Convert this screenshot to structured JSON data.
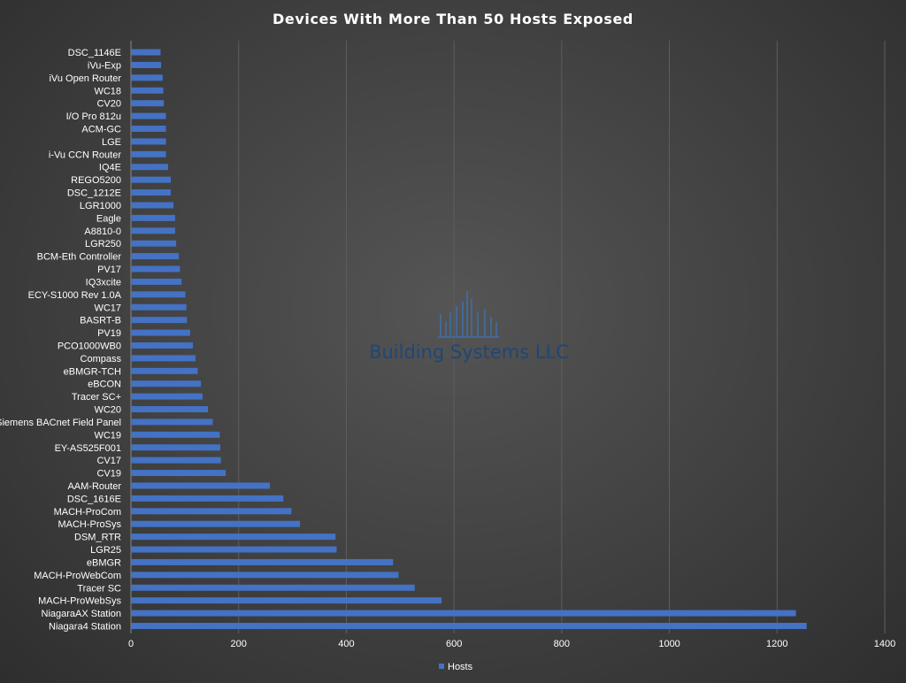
{
  "chart_data": {
    "type": "bar",
    "orientation": "horizontal",
    "title": "Devices With More Than 50 Hosts Exposed",
    "categories": [
      "Niagara4 Station",
      "NiagaraAX Station",
      "MACH-ProWebSys",
      "Tracer SC",
      "MACH-ProWebCom",
      "eBMGR",
      "LGR25",
      "DSM_RTR",
      "MACH-ProSys",
      "MACH-ProCom",
      "DSC_1616E",
      "AAM-Router",
      "CV19",
      "CV17",
      "EY-AS525F001",
      "WC19",
      "Siemens BACnet Field Panel",
      "WC20",
      "Tracer SC+",
      "eBCON",
      "eBMGR-TCH",
      "Compass",
      "PCO1000WB0",
      "PV19",
      "BASRT-B",
      "WC17",
      "ECY-S1000 Rev 1.0A",
      "IQ3xcite",
      "PV17",
      "BCM-Eth Controller",
      "LGR250",
      "A8810-0",
      "Eagle",
      "LGR1000",
      "DSC_1212E",
      "REGO5200",
      "IQ4E",
      "i-Vu CCN Router",
      "LGE",
      "ACM-GC",
      "I/O Pro 812u",
      "CV20",
      "WC18",
      "iVu Open Router",
      "iVu-Exp",
      "DSC_1146E"
    ],
    "series": [
      {
        "name": "Hosts",
        "color": "#4472c4",
        "values": [
          1255,
          1235,
          577,
          527,
          497,
          487,
          382,
          380,
          314,
          298,
          283,
          258,
          176,
          167,
          166,
          165,
          152,
          143,
          133,
          130,
          124,
          120,
          115,
          110,
          104,
          103,
          101,
          94,
          91,
          89,
          84,
          82,
          82,
          79,
          74,
          74,
          69,
          65,
          65,
          65,
          65,
          61,
          60,
          59,
          56,
          55
        ]
      }
    ],
    "xlim": [
      0,
      1400
    ],
    "xticks": [
      0,
      200,
      400,
      600,
      800,
      1000,
      1200,
      1400
    ],
    "grid": true,
    "legend_position": "bottom"
  },
  "watermark": {
    "text": "Building Systems LLC",
    "color": "#1e4777"
  }
}
